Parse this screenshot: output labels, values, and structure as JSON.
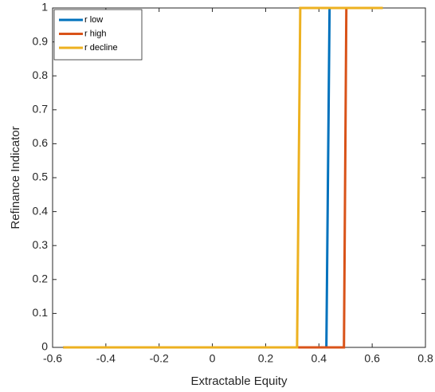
{
  "chart_data": {
    "type": "line",
    "xlabel": "Extractable Equity",
    "ylabel": "Refinance Indicator",
    "xlim": [
      -0.6,
      0.8
    ],
    "xticks": [
      -0.6,
      -0.4,
      -0.2,
      0,
      0.2,
      0.4,
      0.6,
      0.8
    ],
    "ylim": [
      0,
      1
    ],
    "yticks": [
      0,
      0.1,
      0.2,
      0.3,
      0.4,
      0.5,
      0.6,
      0.7,
      0.8,
      0.9,
      1
    ],
    "legend": "upper-left",
    "series": [
      {
        "name": "r low",
        "color": "#0072bd",
        "x": [
          -0.56,
          0.428,
          0.44,
          0.64
        ],
        "values": [
          0,
          0,
          1,
          1
        ]
      },
      {
        "name": "r high",
        "color": "#d95319",
        "x": [
          -0.56,
          0.494,
          0.503,
          0.64
        ],
        "values": [
          0,
          0,
          1,
          1
        ]
      },
      {
        "name": "r decline",
        "color": "#edb120",
        "x": [
          -0.56,
          0.318,
          0.33,
          0.64
        ],
        "values": [
          0,
          0,
          1,
          1
        ]
      }
    ]
  }
}
